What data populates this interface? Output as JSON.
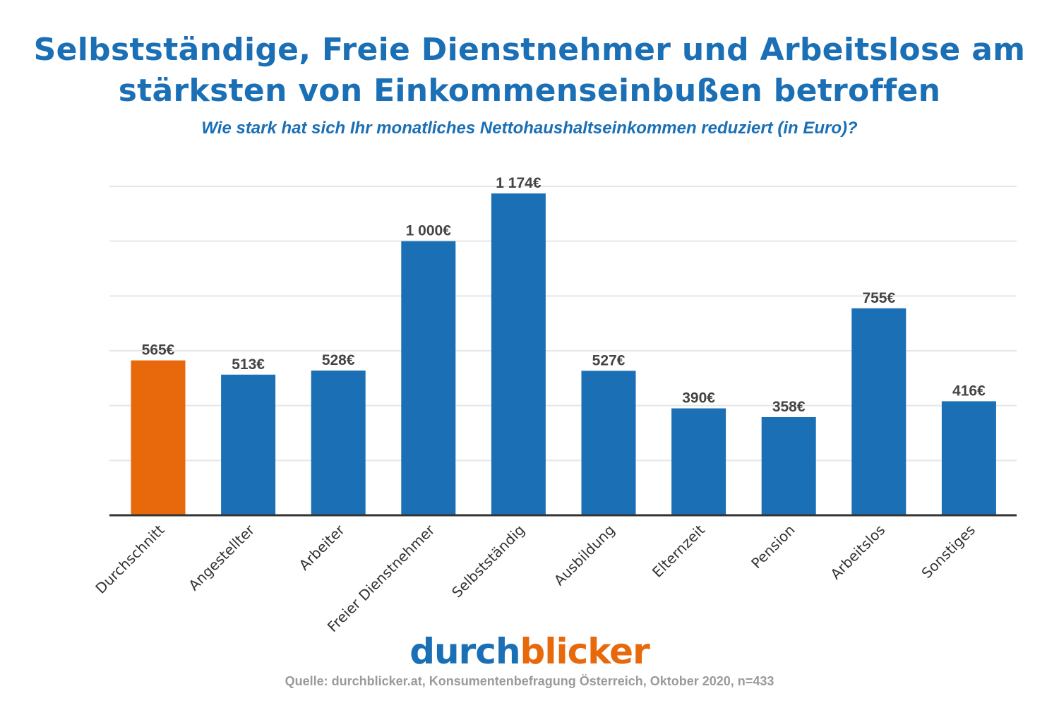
{
  "title_line1": "Selbstständige, Freie Dienstnehmer und Arbeitslose am",
  "title_line2": "stärksten von Einkommenseinbußen betroffen",
  "subtitle": "Wie stark hat sich Ihr monatliches Nettohaushaltseinkommen reduziert (in Euro)?",
  "logo": {
    "part1": "durch",
    "part2": "blicker"
  },
  "source": "Quelle: durchblicker.at, Konsumentenbefragung Österreich, Oktober 2020, n=433",
  "colors": {
    "highlight": "#e8690c",
    "bar": "#1a6fb5",
    "title": "#1a6fb5",
    "grid": "#e6e6e6",
    "axis": "#333333"
  },
  "chart_data": {
    "type": "bar",
    "title": "Selbstständige, Freie Dienstnehmer und Arbeitslose am stärksten von Einkommenseinbußen betroffen",
    "subtitle": "Wie stark hat sich Ihr monatliches Nettohaushaltseinkommen reduziert (in Euro)?",
    "xlabel": "",
    "ylabel": "",
    "ylim": [
      0,
      1200
    ],
    "grid": true,
    "categories": [
      "Durchschnitt",
      "Angestellter",
      "Arbeiter",
      "Freier Dienstnehmer",
      "Selbstständig",
      "Ausbildung",
      "Elternzeit",
      "Pension",
      "Arbeitslos",
      "Sonstiges"
    ],
    "values": [
      565,
      513,
      528,
      1000,
      1174,
      527,
      390,
      358,
      755,
      416
    ],
    "value_labels": [
      "565€",
      "513€",
      "528€",
      "1 000€",
      "1 174€",
      "527€",
      "390€",
      "358€",
      "755€",
      "416€"
    ],
    "highlight_index": 0
  }
}
